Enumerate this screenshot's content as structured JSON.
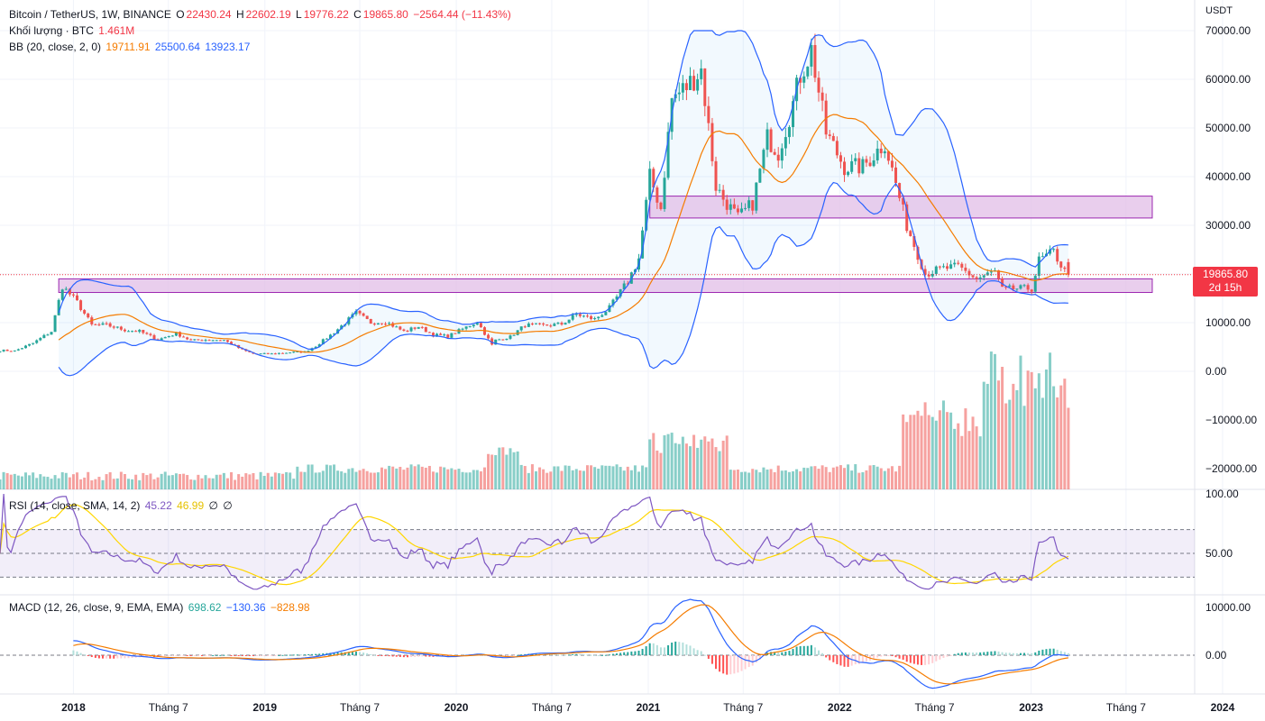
{
  "unit": "USDT",
  "legend_main": {
    "symbol": "Bitcoin / TetherUS, 1W, BINANCE",
    "open_label": "O",
    "open": "22430.24",
    "high_label": "H",
    "high": "22602.19",
    "low_label": "L",
    "low": "19776.22",
    "close_label": "C",
    "close": "19865.80",
    "change": "−2564.44 (−11.43%)"
  },
  "legend_volume": {
    "label": "Khối lượng · BTC",
    "value": "1.461M"
  },
  "legend_bb": {
    "label": "BB (20, close, 2, 0)",
    "basis": "19711.91",
    "upper": "25500.64",
    "lower": "13923.17"
  },
  "legend_rsi": {
    "label": "RSI (14, close, SMA, 14, 2)",
    "rsi": "45.22",
    "ma": "46.99",
    "v1": "∅",
    "v2": "∅"
  },
  "legend_macd": {
    "label": "MACD (12, 26, close, 9, EMA, EMA)",
    "hist": "698.62",
    "macd": "−130.36",
    "signal": "−828.98"
  },
  "price_tag": {
    "price": "19865.80",
    "countdown": "2d 15h"
  },
  "colors": {
    "up": "#26a69a",
    "down": "#ef5350",
    "bb_band": "#2962ff",
    "bb_basis": "#f57c00",
    "rsi": "#7e57c2",
    "rsi_ma": "#ffd600",
    "macd": "#2962ff",
    "signal": "#f57c00",
    "zone": "#e1bee7",
    "zone_border": "#9c27b0"
  },
  "chart_data": {
    "type": "candlestick",
    "title": "Bitcoin / TetherUS, 1W, BINANCE",
    "y_axis_labels": [
      "70000.00",
      "60000.00",
      "50000.00",
      "40000.00",
      "30000.00",
      "20000.00",
      "10000.00",
      "0.00",
      "−10000.00",
      "−20000.00"
    ],
    "ylim": [
      -24500,
      72000
    ],
    "x_tick_labels": [
      "2018",
      "Tháng 7",
      "2019",
      "Tháng 7",
      "2020",
      "Tháng 7",
      "2021",
      "Tháng 7",
      "2022",
      "Tháng 7",
      "2023",
      "Tháng 7",
      "2024"
    ],
    "x_tick_dates": [
      "2018-01-01",
      "2018-07-01",
      "2019-01-01",
      "2019-07-01",
      "2020-01-01",
      "2020-07-01",
      "2021-01-01",
      "2021-07-01",
      "2022-01-01",
      "2022-07-01",
      "2023-01-01",
      "2023-07-01",
      "2024-01-01"
    ],
    "x_end_date": "2024-02-20",
    "last_price": 19865.8,
    "price_close_series": {
      "dates": [
        "2017-08-14",
        "2017-09-11",
        "2017-10-16",
        "2017-11-20",
        "2017-12-11",
        "2018-01-08",
        "2018-02-05",
        "2018-03-05",
        "2018-04-09",
        "2018-05-07",
        "2018-06-11",
        "2018-07-16",
        "2018-08-13",
        "2018-09-10",
        "2018-10-15",
        "2018-11-19",
        "2018-12-10",
        "2019-01-14",
        "2019-02-18",
        "2019-03-18",
        "2019-04-08",
        "2019-05-13",
        "2019-06-24",
        "2019-07-22",
        "2019-08-19",
        "2019-09-23",
        "2019-10-21",
        "2019-11-18",
        "2019-12-16",
        "2020-01-13",
        "2020-02-10",
        "2020-03-09",
        "2020-03-16",
        "2020-04-13",
        "2020-05-11",
        "2020-06-15",
        "2020-07-20",
        "2020-08-17",
        "2020-09-21",
        "2020-10-19",
        "2020-11-23",
        "2020-12-14",
        "2021-01-04",
        "2021-01-25",
        "2021-02-15",
        "2021-03-15",
        "2021-04-12",
        "2021-05-10",
        "2021-05-24",
        "2021-06-21",
        "2021-07-19",
        "2021-08-16",
        "2021-09-06",
        "2021-10-04",
        "2021-10-18",
        "2021-11-08",
        "2021-12-06",
        "2022-01-10",
        "2022-02-14",
        "2022-03-28",
        "2022-05-09",
        "2022-06-13",
        "2022-07-11",
        "2022-08-15",
        "2022-09-19",
        "2022-10-24",
        "2022-11-07",
        "2022-12-05",
        "2023-01-02",
        "2023-01-16",
        "2023-02-13",
        "2023-03-06",
        "2023-03-13"
      ],
      "values": [
        4300,
        4200,
        5800,
        8200,
        17500,
        14200,
        9500,
        9500,
        8500,
        8200,
        6500,
        7800,
        6300,
        6500,
        6400,
        4400,
        3600,
        3600,
        3900,
        4000,
        5200,
        8000,
        12000,
        10000,
        10200,
        8200,
        9200,
        7500,
        7200,
        8700,
        10200,
        5400,
        6400,
        7100,
        9500,
        9400,
        9700,
        11700,
        10700,
        13000,
        18500,
        23200,
        40000,
        33500,
        56000,
        58500,
        62000,
        38000,
        35500,
        31500,
        34500,
        48000,
        45000,
        55000,
        61000,
        66000,
        49000,
        42000,
        42000,
        47000,
        30000,
        20000,
        21000,
        21500,
        19000,
        20500,
        16800,
        17000,
        17000,
        22800,
        24500,
        20500,
        19865.8
      ]
    },
    "bollinger": {
      "period": 20,
      "stddev": 2,
      "basis_last": 19711.91,
      "upper_last": 25500.64,
      "lower_last": 13923.17,
      "upper_peaks": [
        {
          "date": "2021-04",
          "value": 70000
        },
        {
          "date": "2021-11",
          "value": 70000
        }
      ]
    },
    "volume": {
      "last": "1.461M",
      "spike_date": "2022-11-07"
    },
    "zones": [
      {
        "y": [
          31500,
          36000
        ],
        "from": "2021-01-04",
        "to": "2023-08-20"
      },
      {
        "y": [
          16200,
          19000
        ],
        "from": "2017-12-04",
        "to": "2023-08-20"
      }
    ],
    "rsi": {
      "axis_labels": [
        "100.00",
        "50.00"
      ],
      "upper": 70,
      "lower": 30,
      "last": 45.22,
      "ma_last": 46.99
    },
    "macd": {
      "axis_labels": [
        "10000.00",
        "0.00"
      ],
      "hist_last": 698.62,
      "macd_last": -130.36,
      "signal_last": -828.98
    }
  }
}
